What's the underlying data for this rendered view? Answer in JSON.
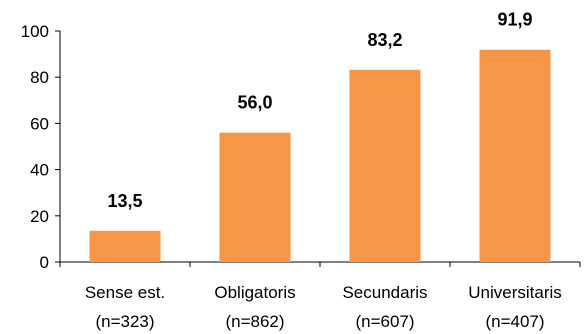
{
  "chart_data": {
    "type": "bar",
    "categories": [
      [
        "Sense est.",
        "(n=323)"
      ],
      [
        "Obligatoris",
        "(n=862)"
      ],
      [
        "Secundaris",
        "(n=607)"
      ],
      [
        "Universitaris",
        "(n=407)"
      ]
    ],
    "values": [
      13.5,
      56.0,
      83.2,
      91.9
    ],
    "value_labels": [
      "13,5",
      "56,0",
      "83,2",
      "91,9"
    ],
    "ylim": [
      0,
      100
    ],
    "yticks": [
      0,
      20,
      40,
      60,
      80,
      100
    ],
    "bar_color": "#F79646",
    "grid": false,
    "legend": "none",
    "title": "",
    "xlabel": "",
    "ylabel": ""
  }
}
